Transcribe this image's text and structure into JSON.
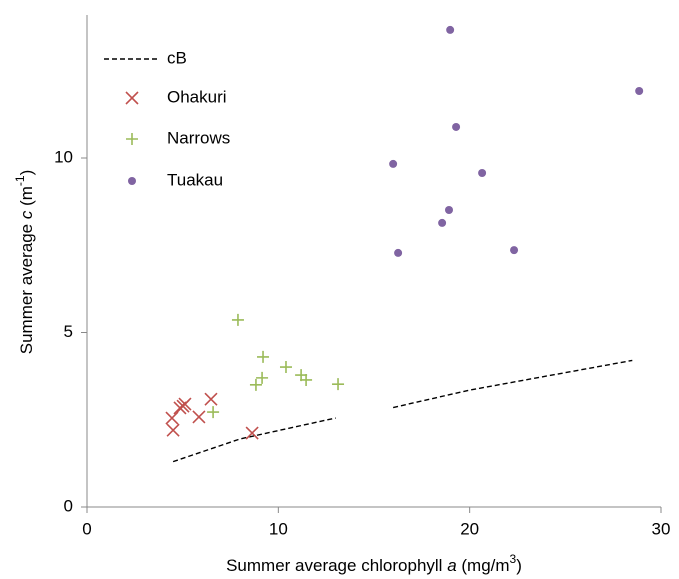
{
  "chart_data": {
    "type": "scatter",
    "xlabel": {
      "text": "Summer average chlorophyll ",
      "italic": "a",
      "unit": " (mg/m",
      "sup": "3",
      "close": ")"
    },
    "ylabel": {
      "text": "Summer average ",
      "italic": "c",
      "unit": " (m",
      "sup": "-1",
      "close": ")"
    },
    "xlim": [
      0,
      30
    ],
    "xticks": [
      0,
      10,
      20,
      30
    ],
    "ylim": [
      0,
      14
    ],
    "yticks": [
      0,
      5,
      10
    ],
    "grid": false,
    "legend": "upper left",
    "series": [
      {
        "name": "cB",
        "marker": "dashed-line",
        "color": "#000000",
        "x": [
          4.5,
          8,
          13,
          null,
          16,
          20,
          28.5
        ],
        "values": [
          1.3,
          1.95,
          2.55,
          null,
          2.85,
          3.35,
          4.2
        ]
      },
      {
        "name": "Ohakuri",
        "marker": "x",
        "color": "#c0504d",
        "x": [
          4.44,
          4.5,
          4.86,
          5.02,
          5.12,
          5.85,
          6.48,
          8.63
        ],
        "values": [
          2.55,
          2.2,
          2.84,
          2.89,
          2.95,
          2.58,
          3.09,
          2.12
        ]
      },
      {
        "name": "Narrows",
        "marker": "+",
        "color": "#9bbb59",
        "x": [
          7.89,
          9.2,
          9.15,
          8.83,
          10.4,
          11.19,
          11.45,
          13.12,
          6.59
        ],
        "values": [
          5.36,
          4.3,
          3.7,
          3.5,
          4.01,
          3.78,
          3.64,
          3.52,
          2.72
        ]
      },
      {
        "name": "Tuakau",
        "marker": "o",
        "color": "#8064a2",
        "x": [
          18.98,
          28.86,
          19.29,
          16.0,
          20.65,
          18.92,
          18.56,
          16.26,
          22.32
        ],
        "values": [
          13.67,
          11.92,
          10.89,
          9.83,
          9.57,
          8.51,
          8.14,
          7.28,
          7.36
        ]
      }
    ]
  }
}
